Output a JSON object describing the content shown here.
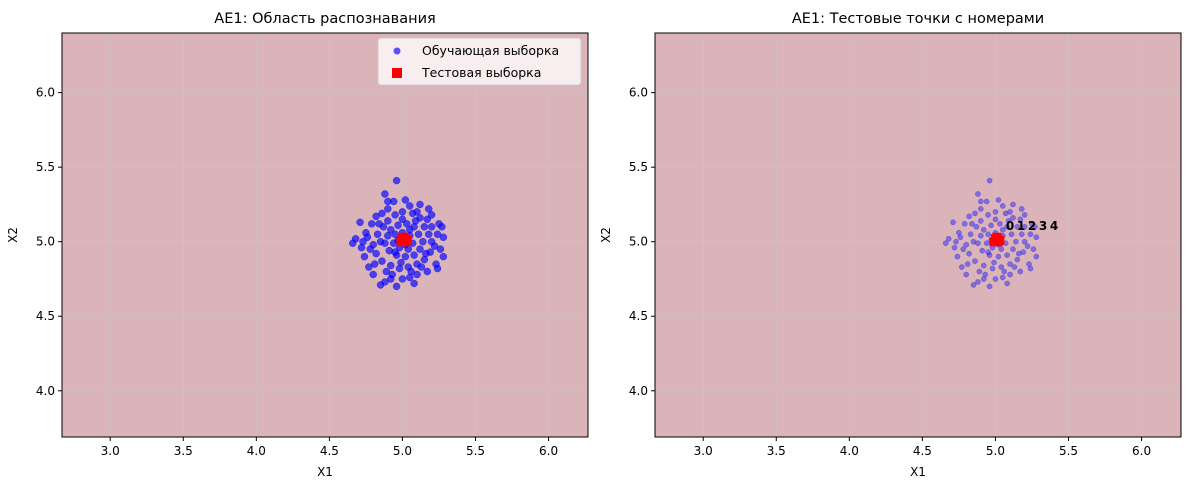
{
  "chart_data": [
    {
      "type": "scatter",
      "title": "AE1: Область распознавания",
      "xlabel": "X1",
      "ylabel": "X2",
      "xlim": [
        2.67,
        6.27
      ],
      "ylim": [
        3.69,
        6.4
      ],
      "xticks": [
        "3.0",
        "3.5",
        "4.0",
        "4.5",
        "5.0",
        "5.5",
        "6.0"
      ],
      "yticks": [
        "4.0",
        "4.5",
        "5.0",
        "5.5",
        "6.0"
      ],
      "grid": true,
      "background_color": "#dab4b9",
      "legend": {
        "placement": "top-right",
        "entries": [
          "Обучающая выборка",
          "Тестовая выборка"
        ]
      },
      "series": [
        {
          "name": "Обучающая выборка",
          "color": "#0000ff",
          "marker": "circle"
        },
        {
          "name": "Тестовая выборка",
          "color": "#ff0000",
          "marker": "square"
        }
      ]
    },
    {
      "type": "scatter",
      "title": "AE1: Тестовые точки с номерами",
      "xlabel": "X1",
      "ylabel": "X2",
      "xlim": [
        2.67,
        6.27
      ],
      "ylim": [
        3.69,
        6.4
      ],
      "xticks": [
        "3.0",
        "3.5",
        "4.0",
        "4.5",
        "5.0",
        "5.5",
        "6.0"
      ],
      "yticks": [
        "4.0",
        "4.5",
        "5.0",
        "5.5",
        "6.0"
      ],
      "grid": true,
      "background_color": "#dab4b9",
      "point_labels": [
        "0",
        "1",
        "2",
        "3",
        "4"
      ]
    }
  ],
  "training_points": [
    [
      4.96,
      5.41
    ],
    [
      4.88,
      5.32
    ],
    [
      4.71,
      5.13
    ],
    [
      4.94,
      5.27
    ],
    [
      5.02,
      5.28
    ],
    [
      4.9,
      5.22
    ],
    [
      5.05,
      5.24
    ],
    [
      5.12,
      5.25
    ],
    [
      5.18,
      5.22
    ],
    [
      5.2,
      5.18
    ],
    [
      5.25,
      5.12
    ],
    [
      5.27,
      5.1
    ],
    [
      5.28,
      5.03
    ],
    [
      5.26,
      4.95
    ],
    [
      5.28,
      4.9
    ],
    [
      5.23,
      4.85
    ],
    [
      5.24,
      4.82
    ],
    [
      5.17,
      4.8
    ],
    [
      5.1,
      4.78
    ],
    [
      5.05,
      4.76
    ],
    [
      5.0,
      4.75
    ],
    [
      4.96,
      4.7
    ],
    [
      4.85,
      4.71
    ],
    [
      4.88,
      4.73
    ],
    [
      4.8,
      4.78
    ],
    [
      4.77,
      4.83
    ],
    [
      4.74,
      4.9
    ],
    [
      4.72,
      4.96
    ],
    [
      4.66,
      4.99
    ],
    [
      4.68,
      5.02
    ],
    [
      4.75,
      5.06
    ],
    [
      4.73,
      5.0
    ],
    [
      4.79,
      5.12
    ],
    [
      4.82,
      5.17
    ],
    [
      4.86,
      5.19
    ],
    [
      4.9,
      5.14
    ],
    [
      4.95,
      5.18
    ],
    [
      5.0,
      5.2
    ],
    [
      5.07,
      5.19
    ],
    [
      5.12,
      5.16
    ],
    [
      5.15,
      5.1
    ],
    [
      5.18,
      5.05
    ],
    [
      5.2,
      5.0
    ],
    [
      5.19,
      4.93
    ],
    [
      5.15,
      4.88
    ],
    [
      5.1,
      4.85
    ],
    [
      5.04,
      4.83
    ],
    [
      4.98,
      4.82
    ],
    [
      4.92,
      4.84
    ],
    [
      4.86,
      4.87
    ],
    [
      4.82,
      4.92
    ],
    [
      4.8,
      4.98
    ],
    [
      4.83,
      5.05
    ],
    [
      4.87,
      5.1
    ],
    [
      4.92,
      5.08
    ],
    [
      4.97,
      5.11
    ],
    [
      5.03,
      5.12
    ],
    [
      5.08,
      5.1
    ],
    [
      5.11,
      5.05
    ],
    [
      5.14,
      5.0
    ],
    [
      5.12,
      4.95
    ],
    [
      5.08,
      4.91
    ],
    [
      5.02,
      4.9
    ],
    [
      4.96,
      4.91
    ],
    [
      4.91,
      4.94
    ],
    [
      4.88,
      4.99
    ],
    [
      4.9,
      5.04
    ],
    [
      4.95,
      5.05
    ],
    [
      5.0,
      5.06
    ],
    [
      5.05,
      5.04
    ],
    [
      5.07,
      4.99
    ],
    [
      5.04,
      4.95
    ],
    [
      4.98,
      4.96
    ],
    [
      4.94,
      4.99
    ],
    [
      4.97,
      5.01
    ],
    [
      5.02,
      4.98
    ],
    [
      5.09,
      5.14
    ],
    [
      4.85,
      5.0
    ],
    [
      5.16,
      4.92
    ],
    [
      4.93,
      4.78
    ],
    [
      5.06,
      4.8
    ],
    [
      4.84,
      5.12
    ],
    [
      5.2,
      5.1
    ],
    [
      4.78,
      4.95
    ],
    [
      5.22,
      4.97
    ],
    [
      5.13,
      4.83
    ],
    [
      4.89,
      4.8
    ],
    [
      5.0,
      5.15
    ],
    [
      4.99,
      4.86
    ],
    [
      5.1,
      5.2
    ],
    [
      4.76,
      5.03
    ],
    [
      5.24,
      5.05
    ],
    [
      4.81,
      4.85
    ],
    [
      5.17,
      5.15
    ],
    [
      4.9,
      5.27
    ],
    [
      5.08,
      4.72
    ],
    [
      4.92,
      4.75
    ],
    [
      5.02,
      5.02
    ],
    [
      4.95,
      4.93
    ],
    [
      5.05,
      5.08
    ]
  ],
  "test_points": [
    [
      5.0,
      5.02
    ],
    [
      5.02,
      5.0
    ],
    [
      5.03,
      5.01
    ],
    [
      5.01,
      5.03
    ],
    [
      4.99,
      5.0
    ]
  ],
  "label_offsets_data": [
    [
      5.1,
      5.08
    ],
    [
      5.11,
      5.09
    ],
    [
      5.1,
      5.09
    ],
    [
      5.12,
      5.08
    ],
    [
      5.11,
      5.07
    ]
  ]
}
